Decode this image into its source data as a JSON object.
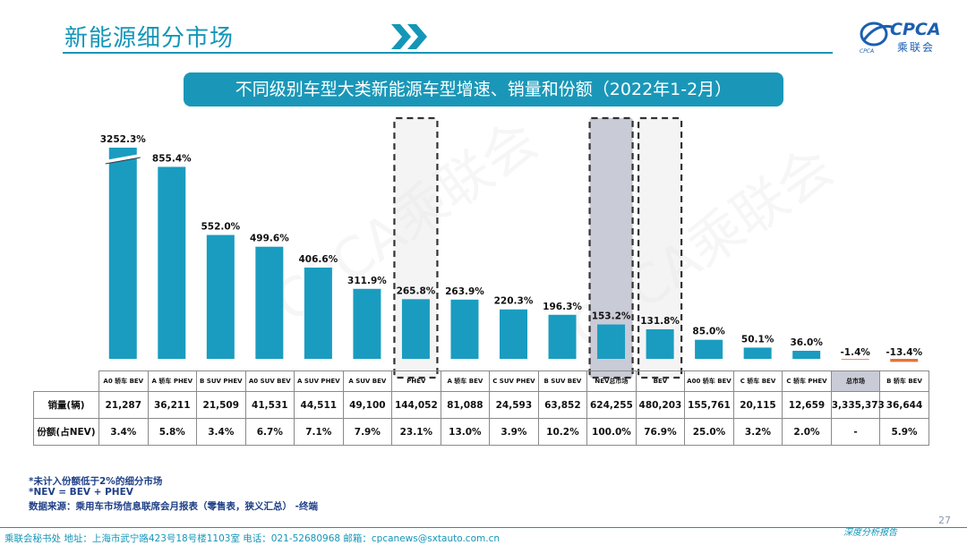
{
  "header": {
    "title": "新能源细分市场",
    "logo_text": "CPCA",
    "logo_sub": "乘联会",
    "logo_mark": "CPCA"
  },
  "subtitle": "不同级别车型大类新能源车型增速、销量和份额（2022年1-2月）",
  "colors": {
    "bar": "#1a9cc0",
    "negative_bar": "#e8703a",
    "accent": "#1496b8",
    "highlight": "#c9cbd6"
  },
  "chart_data": {
    "type": "bar",
    "title": "不同级别车型大类新能源车型增速、销量和份额（2022年1-2月）",
    "value_unit": "%",
    "categories": [
      "A0 轿车 BEV",
      "A 轿车 PHEV",
      "B SUV PHEV",
      "A0 SUV BEV",
      "A SUV PHEV",
      "A SUV BEV",
      "PHEV",
      "A 轿车 BEV",
      "C SUV PHEV",
      "B SUV BEV",
      "NEV总市场",
      "BEV",
      "A00 轿车 BEV",
      "C 轿车 BEV",
      "C 轿车 PHEV",
      "总市场",
      "B 轿车 BEV"
    ],
    "values": [
      3252.3,
      855.4,
      552.0,
      499.6,
      406.6,
      311.9,
      265.8,
      263.9,
      220.3,
      196.3,
      153.2,
      131.8,
      85.0,
      50.1,
      36.0,
      -1.4,
      -13.4
    ],
    "labels": [
      "3252.3%",
      "855.4%",
      "552.0%",
      "499.6%",
      "406.6%",
      "311.9%",
      "265.8%",
      "263.9%",
      "220.3%",
      "196.3%",
      "153.2%",
      "131.8%",
      "85.0%",
      "50.1%",
      "36.0%",
      "-1.4%",
      "-13.4%"
    ],
    "axis_break_category": "A0 轿车 BEV",
    "display_cap": 1000,
    "highlighted_categories": [
      "PHEV",
      "NEV总市场",
      "BEV"
    ],
    "shaded_category": "NEV总市场"
  },
  "table": {
    "row_labels": [
      "销量(辆)",
      "份额(占NEV)"
    ],
    "sales": [
      "21,287",
      "36,211",
      "21,509",
      "41,531",
      "44,511",
      "49,100",
      "144,052",
      "81,088",
      "24,593",
      "63,852",
      "624,255",
      "480,203",
      "155,761",
      "20,115",
      "12,659",
      "3,335,373",
      "36,644"
    ],
    "share": [
      "3.4%",
      "5.8%",
      "3.4%",
      "6.7%",
      "7.1%",
      "7.9%",
      "23.1%",
      "13.0%",
      "3.9%",
      "10.2%",
      "100.0%",
      "76.9%",
      "25.0%",
      "3.2%",
      "2.0%",
      "-",
      "5.9%"
    ]
  },
  "notes": {
    "note1": "*未计入份额低于2%的细分市场",
    "note2": "*NEV = BEV + PHEV",
    "note3": "数据来源：乘用车市场信息联席会月报表（零售表，狭义汇总）  -终端"
  },
  "footer": {
    "text": "乘联会秘书处   地址：上海市武宁路423号18号楼1103室    电话：021-52680968    邮箱：cpcanews@sxtauto.com.cn",
    "page_number": "27",
    "tagline": "深度分析报告"
  },
  "watermark": "CPCA乘联会"
}
